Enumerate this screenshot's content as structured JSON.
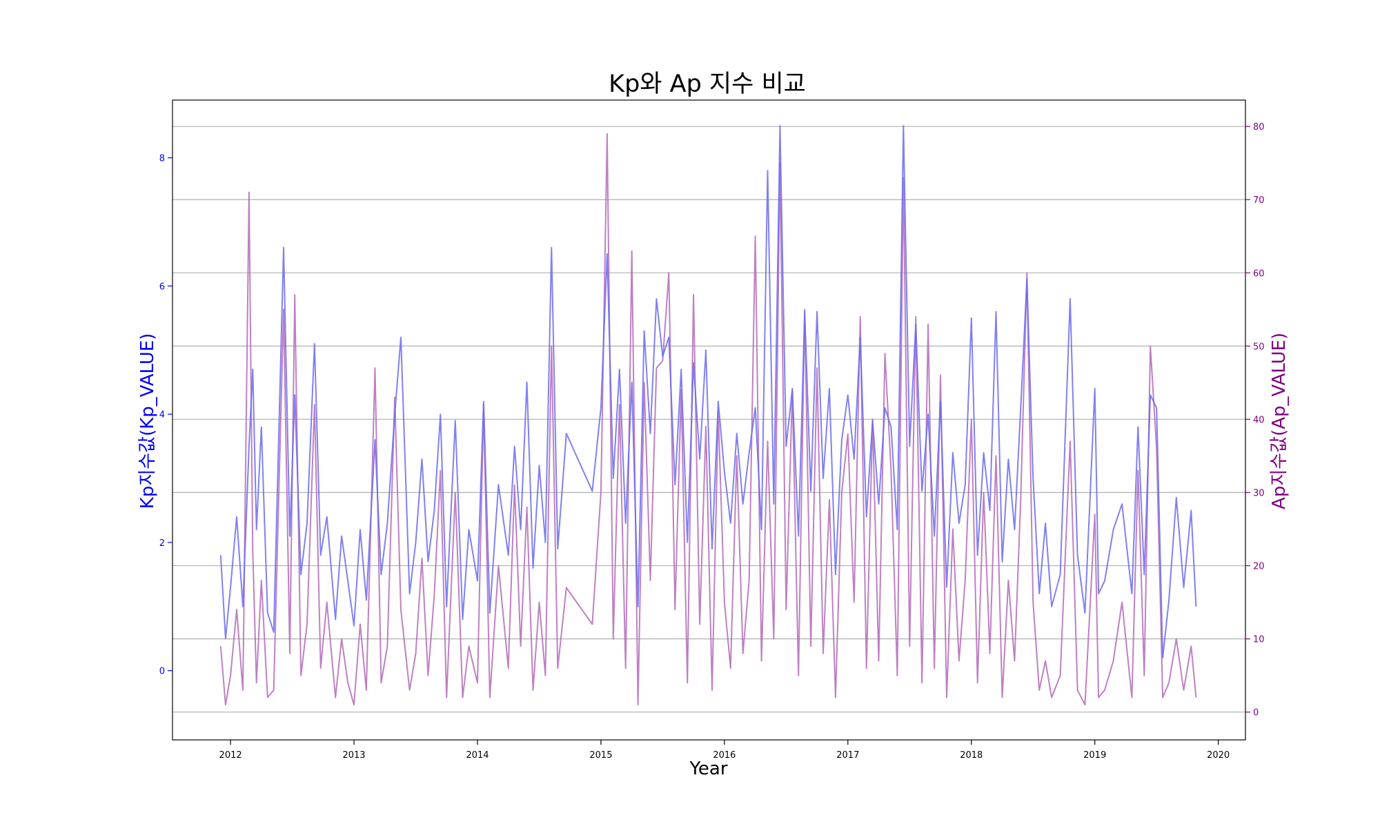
{
  "chart_data": {
    "type": "line",
    "title": "Kp와 Ap 지수 비교",
    "xlabel": "Year",
    "ylabel_left": "Kp지수값(Kp_VALUE)",
    "ylabel_right": "Ap지수값(Ap_VALUE)",
    "xlim": [
      2011.53,
      2020.22
    ],
    "xticks": [
      "2012",
      "2013",
      "2014",
      "2015",
      "2016",
      "2017",
      "2018",
      "2019",
      "2020"
    ],
    "ylim_left": [
      -1.08,
      8.9
    ],
    "yticks_left": [
      0,
      2,
      4,
      6,
      8
    ],
    "ylim_right": [
      -3.8,
      83.6
    ],
    "yticks_right": [
      0,
      10,
      20,
      30,
      40,
      50,
      60,
      70,
      80
    ],
    "grid": "horizontal lines at right-axis ticks",
    "colors": {
      "kp": "#6a6af0",
      "ap": "#b36ab8",
      "left_axis": "#0000ff",
      "right_axis": "#800080"
    },
    "series": [
      {
        "axis": "left",
        "x": [
          2011.92,
          2011.96,
          2012.0,
          2012.05,
          2012.1,
          2012.15,
          2012.18,
          2012.21,
          2012.25,
          2012.3,
          2012.35,
          2012.43,
          2012.48,
          2012.52,
          2012.57,
          2012.62,
          2012.68,
          2012.73,
          2012.78,
          2012.85,
          2012.9,
          2012.95,
          2013.0,
          2013.05,
          2013.1,
          2013.17,
          2013.22,
          2013.27,
          2013.33,
          2013.38,
          2013.45,
          2013.5,
          2013.55,
          2013.6,
          2013.65,
          2013.7,
          2013.75,
          2013.82,
          2013.88,
          2013.93,
          2014.0,
          2014.05,
          2014.1,
          2014.17,
          2014.25,
          2014.3,
          2014.35,
          2014.4,
          2014.45,
          2014.5,
          2014.55,
          2014.6,
          2014.65,
          2014.72,
          2014.93,
          2015.0,
          2015.05,
          2015.1,
          2015.15,
          2015.2,
          2015.25,
          2015.3,
          2015.35,
          2015.4,
          2015.45,
          2015.5,
          2015.55,
          2015.6,
          2015.65,
          2015.7,
          2015.75,
          2015.8,
          2015.85,
          2015.9,
          2015.95,
          2016.0,
          2016.05,
          2016.1,
          2016.15,
          2016.2,
          2016.25,
          2016.3,
          2016.35,
          2016.4,
          2016.45,
          2016.5,
          2016.55,
          2016.6,
          2016.65,
          2016.7,
          2016.75,
          2016.8,
          2016.85,
          2016.9,
          2016.95,
          2017.0,
          2017.05,
          2017.1,
          2017.15,
          2017.2,
          2017.25,
          2017.3,
          2017.35,
          2017.4,
          2017.45,
          2017.5,
          2017.55,
          2017.6,
          2017.65,
          2017.7,
          2017.75,
          2017.8,
          2017.85,
          2017.9,
          2017.95,
          2018.0,
          2018.05,
          2018.1,
          2018.15,
          2018.2,
          2018.25,
          2018.3,
          2018.35,
          2018.4,
          2018.45,
          2018.5,
          2018.55,
          2018.6,
          2018.65,
          2018.72,
          2018.8,
          2018.86,
          2018.92,
          2019.0,
          2019.03,
          2019.08,
          2019.15,
          2019.22,
          2019.3,
          2019.35,
          2019.4,
          2019.45,
          2019.5,
          2019.55,
          2019.6,
          2019.66,
          2019.72,
          2019.78,
          2019.82
        ],
        "y": [
          1.8,
          0.5,
          1.3,
          2.4,
          1.0,
          3.5,
          4.7,
          2.2,
          3.8,
          0.9,
          0.6,
          6.6,
          2.1,
          4.3,
          1.5,
          2.3,
          5.1,
          1.8,
          2.4,
          0.8,
          2.1,
          1.4,
          0.7,
          2.2,
          1.1,
          3.6,
          1.5,
          2.3,
          4.0,
          5.2,
          1.2,
          2.0,
          3.3,
          1.7,
          2.5,
          4.0,
          1.0,
          3.9,
          0.8,
          2.2,
          1.4,
          4.2,
          0.9,
          2.9,
          1.8,
          3.5,
          2.2,
          4.5,
          1.6,
          3.2,
          2.0,
          6.6,
          1.9,
          3.7,
          2.8,
          4.1,
          6.5,
          3.0,
          4.7,
          2.3,
          4.5,
          1.0,
          5.3,
          3.7,
          5.8,
          4.9,
          5.2,
          2.9,
          4.7,
          2.0,
          4.8,
          3.3,
          5.0,
          1.9,
          4.2,
          3.1,
          2.3,
          3.7,
          2.6,
          3.4,
          4.1,
          2.2,
          7.8,
          2.6,
          8.5,
          3.5,
          4.4,
          2.1,
          5.6,
          2.8,
          5.6,
          3.0,
          4.4,
          1.5,
          3.6,
          4.3,
          3.3,
          5.2,
          2.4,
          3.9,
          2.6,
          4.1,
          3.8,
          2.2,
          8.5,
          3.5,
          5.4,
          2.8,
          4.0,
          2.1,
          4.2,
          1.3,
          3.4,
          2.3,
          2.9,
          5.5,
          1.8,
          3.4,
          2.5,
          5.6,
          1.7,
          3.3,
          2.2,
          4.1,
          6.1,
          3.0,
          1.2,
          2.3,
          1.0,
          1.5,
          5.8,
          1.8,
          0.9,
          4.4,
          1.2,
          1.4,
          2.2,
          2.6,
          1.2,
          3.8,
          1.5,
          4.3,
          4.1,
          0.2,
          1.1,
          2.7,
          1.3,
          2.5,
          1.0
        ]
      },
      {
        "axis": "right",
        "x": [
          2011.92,
          2011.96,
          2012.0,
          2012.05,
          2012.1,
          2012.15,
          2012.18,
          2012.21,
          2012.25,
          2012.3,
          2012.35,
          2012.43,
          2012.48,
          2012.52,
          2012.57,
          2012.62,
          2012.68,
          2012.73,
          2012.78,
          2012.85,
          2012.9,
          2012.95,
          2013.0,
          2013.05,
          2013.1,
          2013.17,
          2013.22,
          2013.27,
          2013.33,
          2013.38,
          2013.45,
          2013.5,
          2013.55,
          2013.6,
          2013.65,
          2013.7,
          2013.75,
          2013.82,
          2013.88,
          2013.93,
          2014.0,
          2014.05,
          2014.1,
          2014.17,
          2014.25,
          2014.3,
          2014.35,
          2014.4,
          2014.45,
          2014.5,
          2014.55,
          2014.6,
          2014.65,
          2014.72,
          2014.93,
          2015.0,
          2015.05,
          2015.1,
          2015.15,
          2015.2,
          2015.25,
          2015.3,
          2015.35,
          2015.4,
          2015.45,
          2015.5,
          2015.55,
          2015.6,
          2015.65,
          2015.7,
          2015.75,
          2015.8,
          2015.85,
          2015.9,
          2015.95,
          2016.0,
          2016.05,
          2016.1,
          2016.15,
          2016.2,
          2016.25,
          2016.3,
          2016.35,
          2016.4,
          2016.45,
          2016.5,
          2016.55,
          2016.6,
          2016.65,
          2016.7,
          2016.75,
          2016.8,
          2016.85,
          2016.9,
          2016.95,
          2017.0,
          2017.05,
          2017.1,
          2017.15,
          2017.2,
          2017.25,
          2017.3,
          2017.35,
          2017.4,
          2017.45,
          2017.5,
          2017.55,
          2017.6,
          2017.65,
          2017.7,
          2017.75,
          2017.8,
          2017.85,
          2017.9,
          2017.95,
          2018.0,
          2018.05,
          2018.1,
          2018.15,
          2018.2,
          2018.25,
          2018.3,
          2018.35,
          2018.4,
          2018.45,
          2018.5,
          2018.55,
          2018.6,
          2018.65,
          2018.72,
          2018.8,
          2018.86,
          2018.92,
          2019.0,
          2019.03,
          2019.08,
          2019.15,
          2019.22,
          2019.3,
          2019.35,
          2019.4,
          2019.45,
          2019.5,
          2019.55,
          2019.6,
          2019.66,
          2019.72,
          2019.78,
          2019.82
        ],
        "y": [
          9,
          1,
          5,
          14,
          3,
          71,
          22,
          4,
          18,
          2,
          3,
          55,
          8,
          57,
          5,
          12,
          42,
          6,
          15,
          2,
          10,
          4,
          1,
          12,
          3,
          47,
          4,
          9,
          43,
          14,
          3,
          8,
          21,
          5,
          16,
          33,
          2,
          30,
          2,
          9,
          4,
          42,
          2,
          20,
          6,
          31,
          9,
          28,
          3,
          15,
          5,
          50,
          6,
          17,
          12,
          30,
          79,
          10,
          42,
          6,
          63,
          1,
          45,
          18,
          47,
          48,
          60,
          14,
          44,
          4,
          57,
          12,
          39,
          3,
          41,
          15,
          6,
          35,
          8,
          18,
          65,
          7,
          37,
          10,
          75,
          14,
          44,
          5,
          55,
          9,
          47,
          8,
          29,
          2,
          30,
          38,
          15,
          54,
          6,
          40,
          7,
          49,
          33,
          5,
          73,
          9,
          54,
          4,
          53,
          6,
          46,
          2,
          25,
          7,
          18,
          40,
          4,
          30,
          8,
          35,
          2,
          18,
          7,
          29,
          60,
          15,
          3,
          7,
          2,
          5,
          37,
          3,
          1,
          27,
          2,
          3,
          7,
          15,
          2,
          33,
          5,
          50,
          36,
          2,
          4,
          10,
          3,
          9,
          2
        ]
      }
    ]
  }
}
